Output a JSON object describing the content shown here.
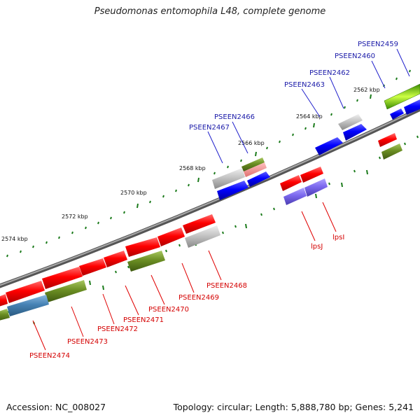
{
  "title": "Pseudomonas entomophila L48, complete genome",
  "footer": {
    "accession": "Accession: NC_008027",
    "topology": "Topology: circular; Length: 5,888,780 bp; Genes: 5,241"
  },
  "scale_ticks": [
    "2562 kbp",
    "2564 kbp",
    "2566 kbp",
    "2568 kbp",
    "2570 kbp",
    "2572 kbp",
    "2574 kbp"
  ],
  "top_strand_genes": [
    "PSEEN2459",
    "PSEEN2460",
    "PSEEN2462",
    "PSEEN2463",
    "PSEEN2466",
    "PSEEN2467"
  ],
  "bottom_strand_genes": [
    "PSEEN2468",
    "PSEEN2469",
    "PSEEN2470",
    "PSEEN2471",
    "PSEEN2472",
    "PSEEN2473",
    "PSEEN2474",
    "lpsI",
    "lpsJ"
  ],
  "colors": {
    "red": "#ff0000",
    "blue": "#0000ff",
    "grey": "#bbbbbb",
    "olive": "#6b8e23",
    "steel_blue": "#4682b4",
    "purple": "#7b68ee",
    "bright_green": "#66cc00",
    "backbone": "#777777",
    "tick_green": "#1a7a1a"
  }
}
